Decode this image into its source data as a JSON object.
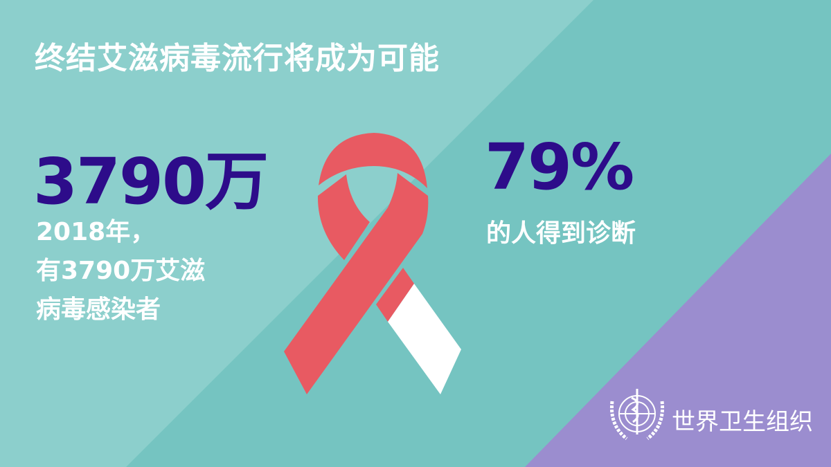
{
  "title": "终结艾滋病毒流行将成为可能",
  "left_stat": {
    "value": "3790万",
    "description_lines": [
      "2018年，",
      "有3790万艾滋",
      "病毒感染者"
    ]
  },
  "right_stat": {
    "value": "79%",
    "description": "的人得到诊断"
  },
  "organization": {
    "name": "世界卫生组织",
    "logo_icon": "who-emblem-icon"
  },
  "colors": {
    "background_light": "#8ccfcc",
    "background_main": "#75c4c1",
    "corner_purple": "#9b8dcf",
    "stat_text": "#2d0c8a",
    "ribbon_red": "#e85a62",
    "ribbon_white": "#ffffff"
  }
}
